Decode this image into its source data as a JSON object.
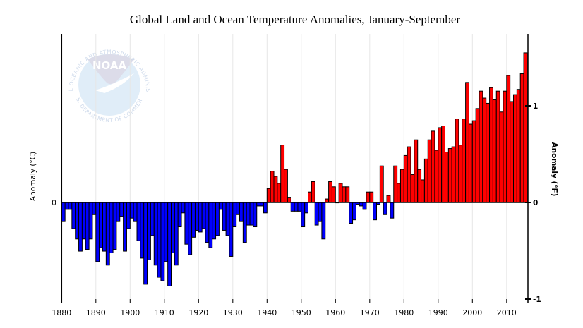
{
  "chart_data": {
    "type": "bar",
    "title": "Global Land and Ocean Temperature Anomalies, January-September",
    "xlabel": "",
    "ylabel": "Anomaly (°C)",
    "ylabel_right": "Anomaly (°F)",
    "x_start": 1880,
    "x_end": 2015,
    "xlim": [
      1880,
      2016
    ],
    "ylim_celsius": [
      -0.58,
      0.96
    ],
    "ylim_fahrenheit": [
      -1.05,
      1.73
    ],
    "left_ticks": [
      {
        "value": 0,
        "label": "0"
      }
    ],
    "right_ticks": [
      {
        "value": 1,
        "label": "1"
      },
      {
        "value": 0,
        "label": "0"
      },
      {
        "value": -1,
        "label": "-1"
      }
    ],
    "x_ticks": [
      {
        "value": 1880,
        "label": "1880"
      },
      {
        "value": 1890,
        "label": "1890"
      },
      {
        "value": 1900,
        "label": "1900"
      },
      {
        "value": 1910,
        "label": "1910"
      },
      {
        "value": 1920,
        "label": "1920"
      },
      {
        "value": 1930,
        "label": "1930"
      },
      {
        "value": 1940,
        "label": "1940"
      },
      {
        "value": 1950,
        "label": "1950"
      },
      {
        "value": 1960,
        "label": "1960"
      },
      {
        "value": 1970,
        "label": "1970"
      },
      {
        "value": 1980,
        "label": "1980"
      },
      {
        "value": 1990,
        "label": "1990"
      },
      {
        "value": 2000,
        "label": "2000"
      },
      {
        "value": 2010,
        "label": "2010"
      }
    ],
    "grid": "vertical",
    "legend": "none",
    "colors": {
      "positive": "#ff0000",
      "negative": "#0000ff",
      "bar_edge": "#000000",
      "grid": "#e6e6e6"
    },
    "units": "°C",
    "values": [
      -0.11,
      -0.04,
      -0.04,
      -0.15,
      -0.21,
      -0.28,
      -0.21,
      -0.27,
      -0.21,
      -0.07,
      -0.34,
      -0.26,
      -0.28,
      -0.36,
      -0.29,
      -0.27,
      -0.11,
      -0.08,
      -0.28,
      -0.15,
      -0.09,
      -0.11,
      -0.22,
      -0.32,
      -0.47,
      -0.33,
      -0.19,
      -0.36,
      -0.43,
      -0.45,
      -0.34,
      -0.48,
      -0.29,
      -0.36,
      -0.14,
      -0.06,
      -0.24,
      -0.3,
      -0.2,
      -0.16,
      -0.17,
      -0.15,
      -0.23,
      -0.26,
      -0.21,
      -0.19,
      -0.04,
      -0.16,
      -0.19,
      -0.31,
      -0.14,
      -0.07,
      -0.11,
      -0.23,
      -0.13,
      -0.13,
      -0.14,
      -0.02,
      -0.02,
      -0.06,
      0.08,
      0.18,
      0.15,
      0.11,
      0.33,
      0.19,
      0.03,
      -0.05,
      -0.05,
      -0.05,
      -0.14,
      -0.06,
      0.06,
      0.12,
      -0.13,
      -0.11,
      -0.21,
      0.02,
      0.12,
      0.09,
      0.0,
      0.11,
      0.09,
      0.09,
      -0.12,
      -0.1,
      -0.01,
      -0.02,
      -0.04,
      0.06,
      0.06,
      -0.1,
      -0.01,
      0.21,
      -0.07,
      0.04,
      -0.09,
      0.21,
      0.11,
      0.19,
      0.27,
      0.32,
      0.16,
      0.36,
      0.19,
      0.13,
      0.25,
      0.36,
      0.41,
      0.3,
      0.43,
      0.44,
      0.29,
      0.31,
      0.32,
      0.48,
      0.33,
      0.48,
      0.69,
      0.45,
      0.47,
      0.54,
      0.64,
      0.6,
      0.57,
      0.66,
      0.59,
      0.64,
      0.52,
      0.64,
      0.73,
      0.58,
      0.62,
      0.65,
      0.74,
      0.86
    ]
  },
  "watermark": {
    "logo_text": "NOAA",
    "ring_top": "NATIONAL OCEANIC AND ATMOSPHERIC ADMINISTRATION",
    "ring_bottom": "U.S. DEPARTMENT OF COMMERCE"
  }
}
